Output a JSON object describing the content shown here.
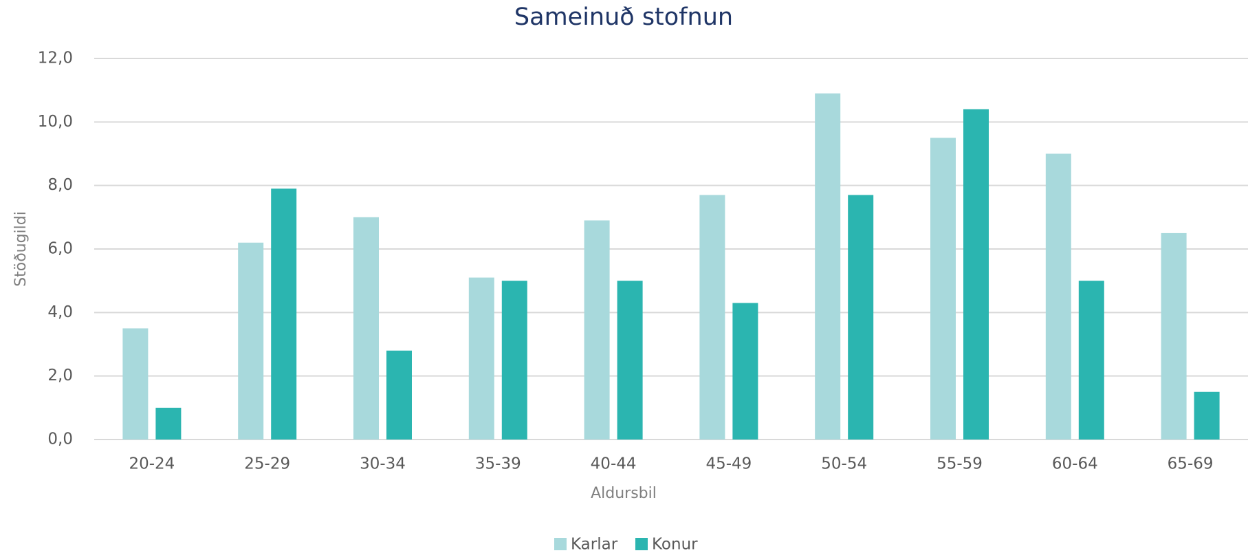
{
  "chart_data": {
    "type": "bar",
    "title": "Sameinuð stofnun",
    "x_label": "Aldursbil",
    "y_label": "Stöðugildi",
    "categories": [
      "20-24",
      "25-29",
      "30-34",
      "35-39",
      "40-44",
      "45-49",
      "50-54",
      "55-59",
      "60-64",
      "65-69"
    ],
    "series": [
      {
        "name": "Karlar",
        "color": "#a8d9dc",
        "values": [
          3.5,
          6.2,
          7.0,
          5.1,
          6.9,
          7.7,
          10.9,
          9.5,
          9.0,
          6.5
        ]
      },
      {
        "name": "Konur",
        "color": "#2bb5b0",
        "values": [
          1.0,
          7.9,
          2.8,
          5.0,
          5.0,
          4.3,
          7.7,
          10.4,
          5.0,
          1.5
        ]
      }
    ],
    "ylim": [
      0,
      12
    ],
    "yticks": [
      {
        "value": 0,
        "label": "0,0"
      },
      {
        "value": 2,
        "label": "2,0"
      },
      {
        "value": 4,
        "label": "4,0"
      },
      {
        "value": 6,
        "label": "6,0"
      },
      {
        "value": 8,
        "label": "8,0"
      },
      {
        "value": 10,
        "label": "10,0"
      },
      {
        "value": 12,
        "label": "12,0"
      }
    ],
    "grid": true,
    "legend": "bottom"
  }
}
